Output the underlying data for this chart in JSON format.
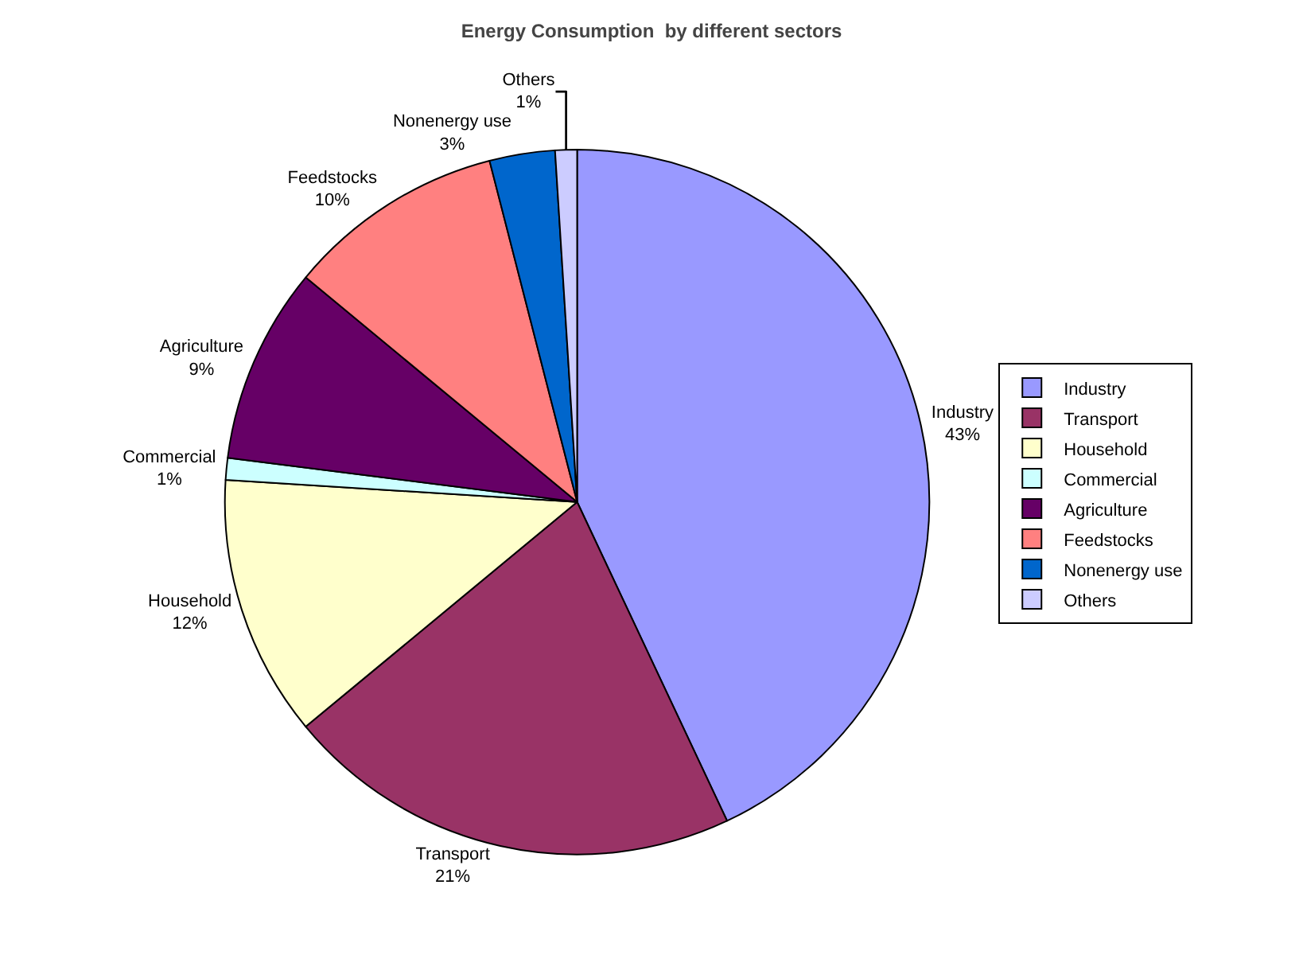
{
  "chart_data": {
    "type": "pie",
    "title": "Energy Consumption  by different sectors",
    "categories": [
      "Industry",
      "Transport",
      "Household",
      "Commercial",
      "Agriculture",
      "Feedstocks",
      "Nonenergy use",
      "Others"
    ],
    "values": [
      43,
      21,
      12,
      1,
      9,
      10,
      3,
      1
    ],
    "colors": [
      "#9999ff",
      "#993366",
      "#ffffcc",
      "#ccffff",
      "#660066",
      "#ff8080",
      "#0066cc",
      "#ccccff"
    ],
    "value_labels": [
      "43%",
      "21%",
      "12%",
      "1%",
      "9%",
      "10%",
      "3%",
      "1%"
    ],
    "legend": "right"
  }
}
